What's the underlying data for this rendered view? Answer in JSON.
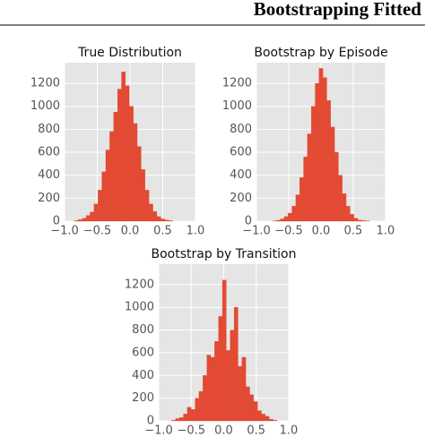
{
  "page_title": "Bootstrapping Fitted",
  "chart_data": [
    {
      "type": "histogram",
      "title": "True Distribution",
      "color": "#e24a33",
      "bins": [
        -0.85,
        -0.79,
        -0.73,
        -0.67,
        -0.61,
        -0.55,
        -0.49,
        -0.43,
        -0.37,
        -0.31,
        -0.25,
        -0.19,
        -0.13,
        -0.07,
        -0.01,
        0.05,
        0.11,
        0.17,
        0.23,
        0.29,
        0.35,
        0.41,
        0.47,
        0.53,
        0.59,
        0.65
      ],
      "counts": [
        5,
        15,
        25,
        50,
        80,
        150,
        270,
        430,
        620,
        780,
        950,
        1150,
        1300,
        1180,
        1000,
        850,
        650,
        450,
        270,
        150,
        85,
        40,
        20,
        10,
        5
      ],
      "xlim": [
        -1.0,
        1.0
      ],
      "xticks": [
        {
          "value": -1.0,
          "label": "−1.0"
        },
        {
          "value": -0.5,
          "label": "−0.5"
        },
        {
          "value": 0.0,
          "label": "0.0"
        },
        {
          "value": 0.5,
          "label": "0.5"
        },
        {
          "value": 1.0,
          "label": "1.0"
        }
      ],
      "ylim": [
        0,
        1380
      ],
      "yticks": [
        0,
        200,
        400,
        600,
        800,
        1000,
        1200
      ],
      "grid": true
    },
    {
      "type": "histogram",
      "title": "Bootstrap by Episode",
      "color": "#e24a33",
      "bins": [
        -0.75,
        -0.69,
        -0.63,
        -0.57,
        -0.51,
        -0.45,
        -0.39,
        -0.33,
        -0.27,
        -0.21,
        -0.15,
        -0.09,
        -0.03,
        0.03,
        0.09,
        0.15,
        0.21,
        0.27,
        0.33,
        0.39,
        0.45,
        0.51,
        0.57,
        0.63,
        0.69,
        0.75
      ],
      "counts": [
        3,
        8,
        20,
        40,
        70,
        130,
        230,
        380,
        560,
        760,
        1000,
        1200,
        1330,
        1250,
        1050,
        820,
        600,
        400,
        240,
        130,
        60,
        25,
        10,
        5,
        2
      ],
      "xlim": [
        -1.0,
        1.0
      ],
      "xticks": [
        {
          "value": -1.0,
          "label": "−1.0"
        },
        {
          "value": -0.5,
          "label": "−0.5"
        },
        {
          "value": 0.0,
          "label": "0.0"
        },
        {
          "value": 0.5,
          "label": "0.5"
        },
        {
          "value": 1.0,
          "label": "1.0"
        }
      ],
      "ylim": [
        0,
        1380
      ],
      "yticks": [
        0,
        200,
        400,
        600,
        800,
        1000,
        1200
      ],
      "grid": true
    },
    {
      "type": "histogram",
      "title": "Bootstrap by Transition",
      "color": "#e24a33",
      "bins": [
        -0.8,
        -0.74,
        -0.68,
        -0.62,
        -0.56,
        -0.5,
        -0.44,
        -0.38,
        -0.32,
        -0.26,
        -0.2,
        -0.14,
        -0.08,
        -0.02,
        0.04,
        0.1,
        0.16,
        0.22,
        0.28,
        0.34,
        0.4,
        0.46,
        0.52,
        0.58,
        0.64,
        0.7,
        0.76,
        0.82
      ],
      "counts": [
        5,
        20,
        30,
        60,
        120,
        100,
        200,
        260,
        400,
        580,
        560,
        700,
        920,
        1240,
        620,
        800,
        1000,
        480,
        560,
        300,
        230,
        170,
        90,
        60,
        40,
        15,
        5
      ],
      "xlim": [
        -1.0,
        1.0
      ],
      "xticks": [
        {
          "value": -1.0,
          "label": "−1.0"
        },
        {
          "value": -0.5,
          "label": "−0.5"
        },
        {
          "value": 0.0,
          "label": "0.0"
        },
        {
          "value": 0.5,
          "label": "0.5"
        },
        {
          "value": 1.0,
          "label": "1.0"
        }
      ],
      "ylim": [
        0,
        1380
      ],
      "yticks": [
        0,
        200,
        400,
        600,
        800,
        1000,
        1200
      ],
      "grid": true
    }
  ]
}
